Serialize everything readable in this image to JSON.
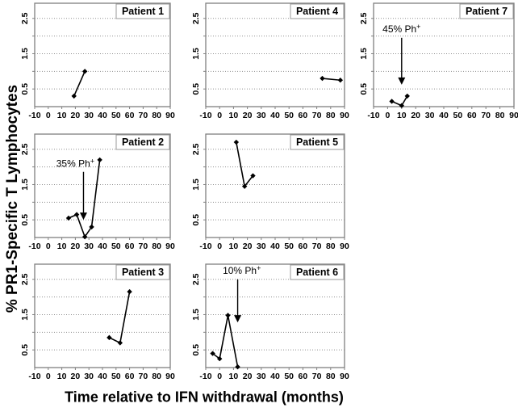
{
  "figure": {
    "y_axis_title": "% PR1-Specific T Lymphocytes",
    "x_axis_title": "Time relative to IFN withdrawal (months)",
    "colors": {
      "series": "#000000",
      "panel_border": "#808080",
      "gridline": "#909090",
      "text": "#000000",
      "background": "#ffffff"
    }
  },
  "chart_data": [
    {
      "type": "line",
      "title": "Patient 1",
      "row": 0,
      "col": 0,
      "xlim": [
        -10,
        90
      ],
      "ylim": [
        0,
        2.93
      ],
      "x_ticks": [
        -10,
        0,
        10,
        20,
        30,
        40,
        50,
        60,
        70,
        80,
        90
      ],
      "y_ticks_labeled": [
        0.5,
        1.5,
        2.5
      ],
      "gridlines_y": [
        0.5,
        1.0,
        1.5,
        2.0,
        2.5
      ],
      "grid_style": "dotted-horizontal",
      "marker": "diamond",
      "x": [
        19,
        27
      ],
      "y": [
        0.3,
        1.0
      ],
      "annotation": null
    },
    {
      "type": "line",
      "title": "Patient 4",
      "row": 0,
      "col": 1,
      "xlim": [
        -10,
        90
      ],
      "ylim": [
        0,
        2.93
      ],
      "x_ticks": [
        -10,
        0,
        10,
        20,
        30,
        40,
        50,
        60,
        70,
        80,
        90
      ],
      "y_ticks_labeled": [
        0.5,
        1.5,
        2.5
      ],
      "gridlines_y": [
        0.5,
        1.0,
        1.5,
        2.0,
        2.5
      ],
      "grid_style": "dotted-horizontal",
      "marker": "diamond",
      "x": [
        74,
        87
      ],
      "y": [
        0.8,
        0.75
      ],
      "annotation": null
    },
    {
      "type": "line",
      "title": "Patient 7",
      "row": 0,
      "col": 2,
      "xlim": [
        -10,
        90
      ],
      "ylim": [
        0,
        2.93
      ],
      "x_ticks": [
        -10,
        0,
        10,
        20,
        30,
        40,
        50,
        60,
        70,
        80,
        90
      ],
      "y_ticks_labeled": [
        0.5,
        1.5,
        2.5
      ],
      "gridlines_y": [
        0.5,
        1.0,
        1.5,
        2.0,
        2.5
      ],
      "grid_style": "dotted-horizontal",
      "marker": "diamond",
      "x": [
        3,
        10,
        14
      ],
      "y": [
        0.15,
        0.03,
        0.3
      ],
      "annotation": {
        "label": "45% Ph",
        "sup": "+",
        "text_x": 10,
        "text_y": 2.2,
        "arrow_x": 10,
        "arrow_y_from": 1.95,
        "arrow_y_to": 0.62
      }
    },
    {
      "type": "line",
      "title": "Patient 2",
      "row": 1,
      "col": 0,
      "xlim": [
        -10,
        90
      ],
      "ylim": [
        0,
        2.93
      ],
      "x_ticks": [
        -10,
        0,
        10,
        20,
        30,
        40,
        50,
        60,
        70,
        80,
        90
      ],
      "y_ticks_labeled": [
        0.5,
        1.5,
        2.5
      ],
      "gridlines_y": [
        0.5,
        1.0,
        1.5,
        2.0,
        2.5
      ],
      "grid_style": "dotted-horizontal",
      "marker": "diamond",
      "x": [
        15,
        21,
        27,
        32,
        38
      ],
      "y": [
        0.55,
        0.65,
        0.02,
        0.3,
        2.2
      ],
      "annotation": {
        "label": "35% Ph",
        "sup": "+",
        "text_x": 20,
        "text_y": 2.1,
        "arrow_x": 26,
        "arrow_y_from": 1.86,
        "arrow_y_to": 0.5
      }
    },
    {
      "type": "line",
      "title": "Patient 5",
      "row": 1,
      "col": 1,
      "xlim": [
        -10,
        90
      ],
      "ylim": [
        0,
        2.93
      ],
      "x_ticks": [
        -10,
        0,
        10,
        20,
        30,
        40,
        50,
        60,
        70,
        80,
        90
      ],
      "y_ticks_labeled": [
        0.5,
        1.5,
        2.5
      ],
      "gridlines_y": [
        0.5,
        1.0,
        1.5,
        2.0,
        2.5
      ],
      "grid_style": "dotted-horizontal",
      "marker": "diamond",
      "x": [
        12,
        18,
        24
      ],
      "y": [
        2.7,
        1.45,
        1.75
      ],
      "annotation": null
    },
    {
      "type": "line",
      "title": "Patient 3",
      "row": 2,
      "col": 0,
      "xlim": [
        -10,
        90
      ],
      "ylim": [
        0,
        2.93
      ],
      "x_ticks": [
        -10,
        0,
        10,
        20,
        30,
        40,
        50,
        60,
        70,
        80,
        90
      ],
      "y_ticks_labeled": [
        0.5,
        1.5,
        2.5
      ],
      "gridlines_y": [
        0.5,
        1.0,
        1.5,
        2.0,
        2.5
      ],
      "grid_style": "dotted-horizontal",
      "marker": "diamond",
      "x": [
        45,
        53,
        60
      ],
      "y": [
        0.85,
        0.7,
        2.15
      ],
      "annotation": null
    },
    {
      "type": "line",
      "title": "Patient 6",
      "row": 2,
      "col": 1,
      "xlim": [
        -10,
        90
      ],
      "ylim": [
        0,
        2.93
      ],
      "x_ticks": [
        -10,
        0,
        10,
        20,
        30,
        40,
        50,
        60,
        70,
        80,
        90
      ],
      "y_ticks_labeled": [
        0.5,
        1.5,
        2.5
      ],
      "gridlines_y": [
        0.5,
        1.0,
        1.5,
        2.0,
        2.5
      ],
      "grid_style": "dotted-horizontal",
      "marker": "diamond",
      "x": [
        -5,
        0,
        6,
        13
      ],
      "y": [
        0.4,
        0.25,
        1.48,
        0.02
      ],
      "annotation": {
        "label": "10% Ph",
        "sup": "+",
        "text_x": 16,
        "text_y": 2.75,
        "arrow_x": 13,
        "arrow_y_from": 2.5,
        "arrow_y_to": 1.28
      }
    }
  ]
}
